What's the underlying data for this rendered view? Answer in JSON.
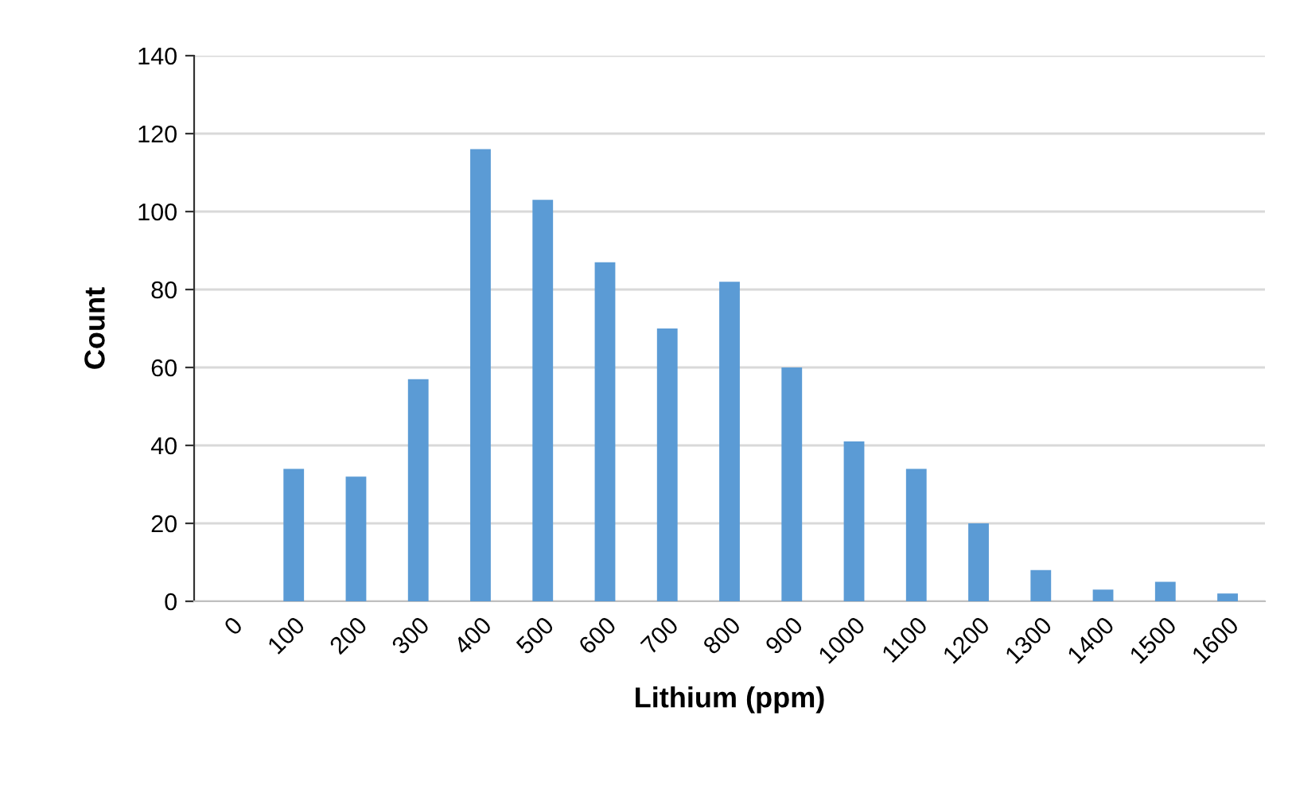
{
  "chart_data": {
    "type": "bar",
    "xlabel": "Lithium (ppm)",
    "ylabel": "Count",
    "categories": [
      "0",
      "100",
      "200",
      "300",
      "400",
      "500",
      "600",
      "700",
      "800",
      "900",
      "1000",
      "1100",
      "1200",
      "1300",
      "1400",
      "1500",
      "1600"
    ],
    "values": [
      0,
      34,
      32,
      57,
      116,
      103,
      87,
      70,
      82,
      60,
      41,
      34,
      20,
      8,
      3,
      5,
      2
    ],
    "color": "#5b9bd5",
    "ylim": [
      0,
      140
    ],
    "yticks": [
      0,
      20,
      40,
      60,
      80,
      100,
      120,
      140
    ],
    "grid": "y"
  }
}
